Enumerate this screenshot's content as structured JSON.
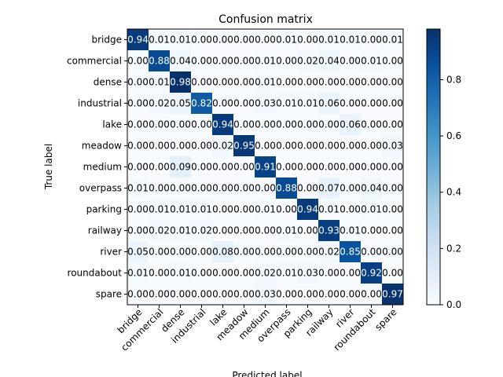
{
  "chart_data": {
    "type": "heatmap",
    "title": "Confusion matrix",
    "xlabel": "Predicted label",
    "ylabel": "True label",
    "labels": [
      "bridge",
      "commercial",
      "dense",
      "industrial",
      "lake",
      "meadow",
      "medium",
      "overpass",
      "parking",
      "railway",
      "river",
      "roundabout",
      "spare"
    ],
    "matrix": [
      [
        "0.94",
        "0.01",
        "0.01",
        "0.00",
        "0.00",
        "0.00",
        "0.00",
        "0.01",
        "0.00",
        "0.01",
        "0.01",
        "0.00",
        "0.01"
      ],
      [
        "0.00",
        "0.88",
        "0.04",
        "0.00",
        "0.00",
        "0.00",
        "0.01",
        "0.00",
        "0.02",
        "0.04",
        "0.00",
        "0.01",
        "0.00"
      ],
      [
        "0.00",
        "0.01",
        "0.98",
        "0.00",
        "0.00",
        "0.00",
        "0.01",
        "0.00",
        "0.00",
        "0.00",
        "0.00",
        "0.00",
        "0.00"
      ],
      [
        "0.00",
        "0.02",
        "0.05",
        "0.82",
        "0.00",
        "0.00",
        "0.03",
        "0.01",
        "0.01",
        "0.06",
        "0.00",
        "0.00",
        "0.00"
      ],
      [
        "0.00",
        "0.00",
        "0.00",
        "0.00",
        "0.94",
        "0.00",
        "0.00",
        "0.00",
        "0.00",
        "0.00",
        "0.06",
        "0.00",
        "0.00"
      ],
      [
        "0.00",
        "0.00",
        "0.00",
        "0.00",
        "0.02",
        "0.95",
        "0.00",
        "0.00",
        "0.00",
        "0.00",
        "0.00",
        "0.00",
        "0.03"
      ],
      [
        "0.00",
        "0.00",
        "0.09",
        "0.00",
        "0.00",
        "0.00",
        "0.91",
        "0.00",
        "0.00",
        "0.00",
        "0.00",
        "0.00",
        "0.00"
      ],
      [
        "0.01",
        "0.00",
        "0.00",
        "0.00",
        "0.00",
        "0.00",
        "0.00",
        "0.88",
        "0.00",
        "0.07",
        "0.00",
        "0.04",
        "0.00"
      ],
      [
        "0.00",
        "0.01",
        "0.01",
        "0.01",
        "0.00",
        "0.00",
        "0.01",
        "0.00",
        "0.94",
        "0.01",
        "0.00",
        "0.01",
        "0.00"
      ],
      [
        "0.00",
        "0.02",
        "0.01",
        "0.02",
        "0.00",
        "0.00",
        "0.00",
        "0.01",
        "0.00",
        "0.93",
        "0.01",
        "0.00",
        "0.00"
      ],
      [
        "0.05",
        "0.00",
        "0.00",
        "0.00",
        "0.08",
        "0.00",
        "0.00",
        "0.00",
        "0.00",
        "0.02",
        "0.85",
        "0.00",
        "0.00"
      ],
      [
        "0.01",
        "0.00",
        "0.01",
        "0.00",
        "0.00",
        "0.00",
        "0.02",
        "0.01",
        "0.03",
        "0.00",
        "0.00",
        "0.92",
        "0.00"
      ],
      [
        "0.00",
        "0.00",
        "0.00",
        "0.00",
        "0.00",
        "0.00",
        "0.03",
        "0.00",
        "0.00",
        "0.00",
        "0.00",
        "0.00",
        "0.97"
      ]
    ],
    "colorbar": {
      "range": [
        0,
        0.98
      ],
      "ticks": [
        "0.0",
        "0.2",
        "0.4",
        "0.6",
        "0.8"
      ],
      "colormap": "Blues"
    },
    "grid": false,
    "legend": "none"
  }
}
